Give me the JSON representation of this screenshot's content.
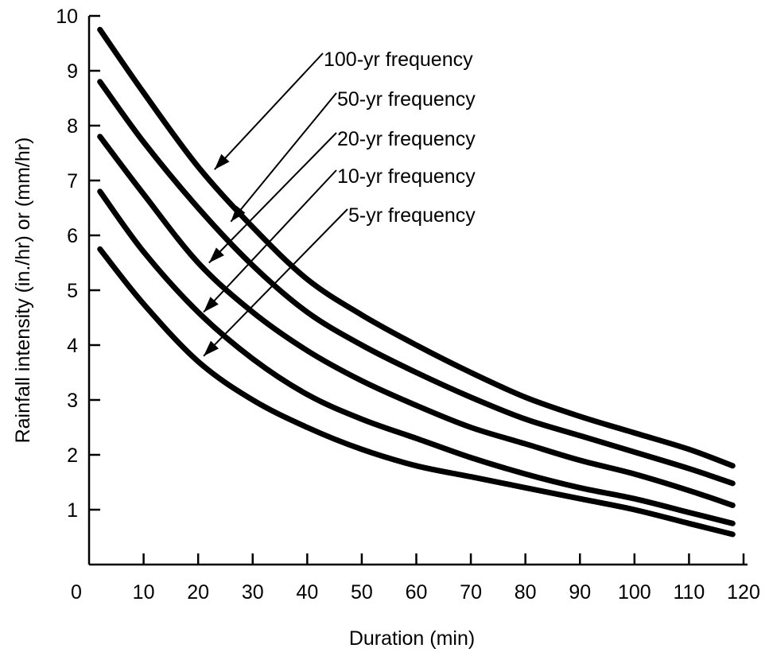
{
  "chart_data": {
    "type": "line",
    "xlabel": "Duration (min)",
    "ylabel": "Rainfall intensity (in./hr) or (mm/hr)",
    "xlim": [
      0,
      120
    ],
    "ylim": [
      0,
      10
    ],
    "x_ticks": [
      0,
      10,
      20,
      30,
      40,
      50,
      60,
      70,
      80,
      90,
      100,
      110,
      120
    ],
    "y_ticks": [
      1,
      2,
      3,
      4,
      5,
      6,
      7,
      8,
      9,
      10
    ],
    "x_tick_labels": [
      "0",
      "10",
      "20",
      "30",
      "40",
      "50",
      "60",
      "70",
      "80",
      "90",
      "100",
      "110",
      "120"
    ],
    "y_tick_labels": [
      "1",
      "2",
      "3",
      "4",
      "5",
      "6",
      "7",
      "8",
      "9",
      "10"
    ],
    "grid": false,
    "legend": "none",
    "line_color": "#000000",
    "series": [
      {
        "name": "100-yr frequency",
        "x": [
          2,
          10,
          20,
          30,
          40,
          50,
          60,
          70,
          80,
          90,
          100,
          110,
          118
        ],
        "y": [
          9.75,
          8.6,
          7.25,
          6.15,
          5.2,
          4.55,
          4.0,
          3.5,
          3.05,
          2.7,
          2.4,
          2.1,
          1.8
        ]
      },
      {
        "name": "50-yr frequency",
        "x": [
          2,
          10,
          20,
          30,
          40,
          50,
          60,
          70,
          80,
          90,
          100,
          110,
          118
        ],
        "y": [
          8.8,
          7.7,
          6.5,
          5.45,
          4.6,
          4.0,
          3.5,
          3.05,
          2.65,
          2.35,
          2.05,
          1.75,
          1.48
        ]
      },
      {
        "name": "20-yr frequency",
        "x": [
          2,
          10,
          20,
          30,
          40,
          50,
          60,
          70,
          80,
          90,
          100,
          110,
          118
        ],
        "y": [
          7.8,
          6.75,
          5.5,
          4.6,
          3.9,
          3.35,
          2.9,
          2.5,
          2.2,
          1.9,
          1.65,
          1.35,
          1.08
        ]
      },
      {
        "name": "10-yr frequency",
        "x": [
          2,
          10,
          20,
          30,
          40,
          50,
          60,
          70,
          80,
          90,
          100,
          110,
          118
        ],
        "y": [
          6.8,
          5.7,
          4.6,
          3.75,
          3.1,
          2.65,
          2.3,
          1.95,
          1.65,
          1.4,
          1.2,
          0.95,
          0.75
        ]
      },
      {
        "name": "5-yr frequency",
        "x": [
          2,
          10,
          20,
          30,
          40,
          50,
          60,
          70,
          80,
          90,
          100,
          110,
          118
        ],
        "y": [
          5.75,
          4.75,
          3.7,
          3.0,
          2.5,
          2.1,
          1.8,
          1.6,
          1.4,
          1.2,
          1.0,
          0.75,
          0.55
        ]
      }
    ],
    "annotations": [
      {
        "text": "100-yr frequency",
        "target_x": 23,
        "target_y": 7.2,
        "series": "100-yr frequency"
      },
      {
        "text": "50-yr frequency",
        "target_x": 26,
        "target_y": 6.25,
        "series": "50-yr frequency"
      },
      {
        "text": "20-yr frequency",
        "target_x": 22,
        "target_y": 5.5,
        "series": "20-yr frequency"
      },
      {
        "text": "10-yr frequency",
        "target_x": 21,
        "target_y": 4.6,
        "series": "10-yr frequency"
      },
      {
        "text": "5-yr frequency",
        "target_x": 21,
        "target_y": 3.8,
        "series": "5-yr frequency"
      }
    ]
  }
}
